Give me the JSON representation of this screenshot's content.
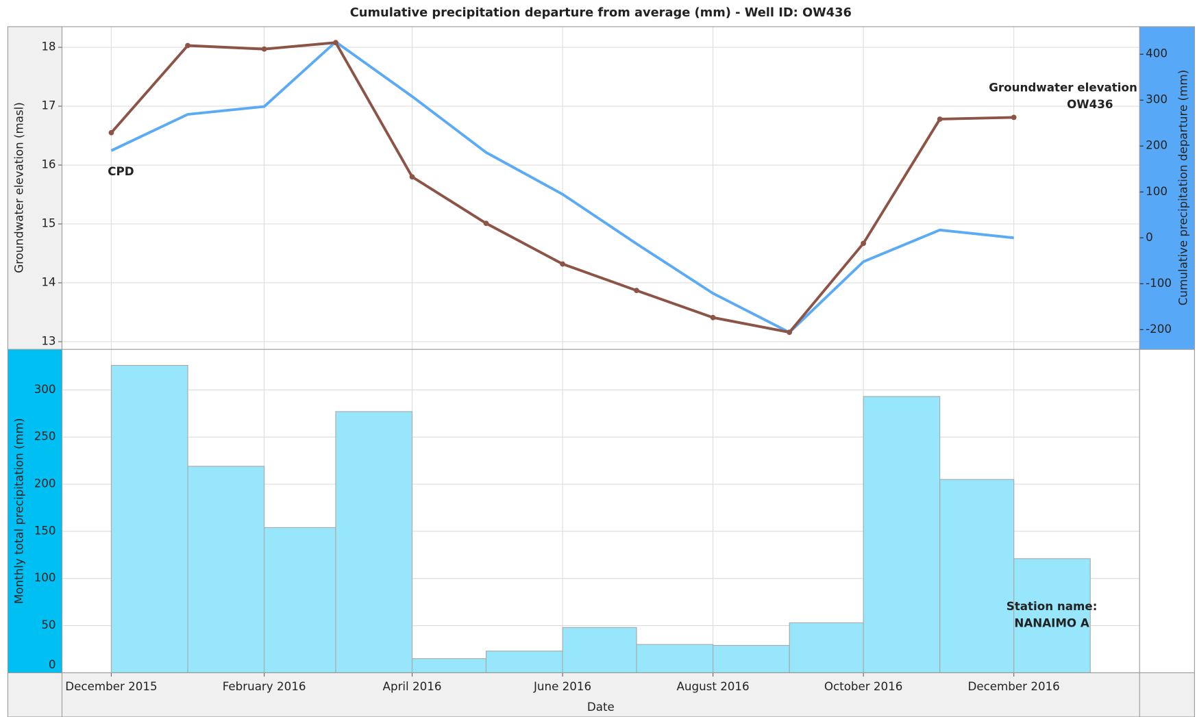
{
  "chart_data": [
    {
      "type": "line",
      "title": "Cumulative precipitation departure from average (mm) - Well ID: OW436",
      "ylabel": "Groundwater elevation (masl)",
      "y2label": "Cumulative precipitation departure (mm)",
      "x": [
        "2015-12",
        "2016-01",
        "2016-02",
        "2016-03",
        "2016-04",
        "2016-05",
        "2016-06",
        "2016-07",
        "2016-08",
        "2016-09",
        "2016-10",
        "2016-11",
        "2016-12"
      ],
      "xlim": [
        "2015-11-11",
        "2017-01-21"
      ],
      "xticks": [
        "2015-12",
        "2016-02",
        "2016-04",
        "2016-06",
        "2016-08",
        "2016-10",
        "2016-12"
      ],
      "series": [
        {
          "color": "#8c5446",
          "values": [
            16.55,
            18.03,
            17.97,
            18.08,
            15.8,
            15.01,
            14.32,
            13.87,
            13.41,
            13.16,
            14.67,
            16.78,
            16.81
          ]
        },
        {
          "color": "#5aaaf5",
          "axis": "y2",
          "values": [
            190,
            269,
            286,
            427,
            308,
            186,
            95,
            -13,
            -121,
            -206,
            -52,
            17,
            0
          ]
        }
      ],
      "ylim": [
        12.87,
        18.35
      ],
      "yticks": [
        13,
        14,
        15,
        16,
        17,
        18
      ],
      "y2lim": [
        -243,
        460
      ],
      "y2ticks": [
        -200,
        -100,
        0,
        100,
        200,
        300,
        400
      ],
      "grid": true,
      "annotations": [
        {
          "text": [
            "CPD"
          ],
          "color": "#1072bb"
        },
        {
          "text": [
            "Groundwater elevation",
            "OW436"
          ],
          "color": "#8c5446"
        }
      ]
    },
    {
      "type": "histogram",
      "ylabel": "Monthly total precipitation (mm)",
      "xlabel": "Date",
      "bins": [
        "2015-12",
        "2016-01",
        "2016-02",
        "2016-03",
        "2016-04",
        "2016-05",
        "2016-06",
        "2016-07",
        "2016-08",
        "2016-09",
        "2016-10",
        "2016-11",
        "2016-12",
        "2017-01"
      ],
      "values": [
        326,
        219,
        154,
        277,
        15,
        23,
        48,
        30,
        29,
        53,
        293,
        205,
        121
      ],
      "color": "#97e6fb",
      "xlim": [
        "2015-11-11",
        "2017-01-21"
      ],
      "xticks": [
        {
          "value": "2015-12",
          "label": "December 2015"
        },
        {
          "value": "2016-02",
          "label": "February 2016"
        },
        {
          "value": "2016-04",
          "label": "April 2016"
        },
        {
          "value": "2016-06",
          "label": "June 2016"
        },
        {
          "value": "2016-08",
          "label": "August 2016"
        },
        {
          "value": "2016-10",
          "label": "October 2016"
        },
        {
          "value": "2016-12",
          "label": "December 2016"
        }
      ],
      "ylim": [
        0,
        343
      ],
      "yticks": [
        0,
        50,
        100,
        150,
        200,
        250,
        300
      ],
      "grid": true,
      "annotations": [
        {
          "text": [
            "Station name:",
            "NANAIMO A"
          ],
          "color": "#1a8fb5"
        }
      ]
    }
  ]
}
